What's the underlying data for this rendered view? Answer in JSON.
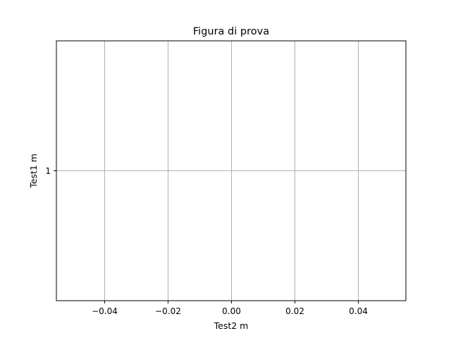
{
  "chart_data": {
    "type": "line",
    "title": "Figura di prova",
    "xlabel": "Test2 m",
    "ylabel": "Test1 m",
    "xlim": [
      -0.055,
      0.055
    ],
    "ylim": [
      0.945,
      1.055
    ],
    "xticks": [
      {
        "value": -0.04,
        "label": "−0.04"
      },
      {
        "value": -0.02,
        "label": "−0.02"
      },
      {
        "value": 0.0,
        "label": "0.00"
      },
      {
        "value": 0.02,
        "label": "0.02"
      },
      {
        "value": 0.04,
        "label": "0.04"
      }
    ],
    "yticks": [
      {
        "value": 1,
        "label": "1"
      }
    ],
    "grid": true,
    "legend": false,
    "series": [
      {
        "x": [
          0
        ],
        "y": [
          1
        ],
        "visible": false
      }
    ],
    "colors": {
      "grid": "#b0b0b0",
      "spine": "#000000",
      "text": "#000000",
      "background": "#ffffff"
    }
  }
}
